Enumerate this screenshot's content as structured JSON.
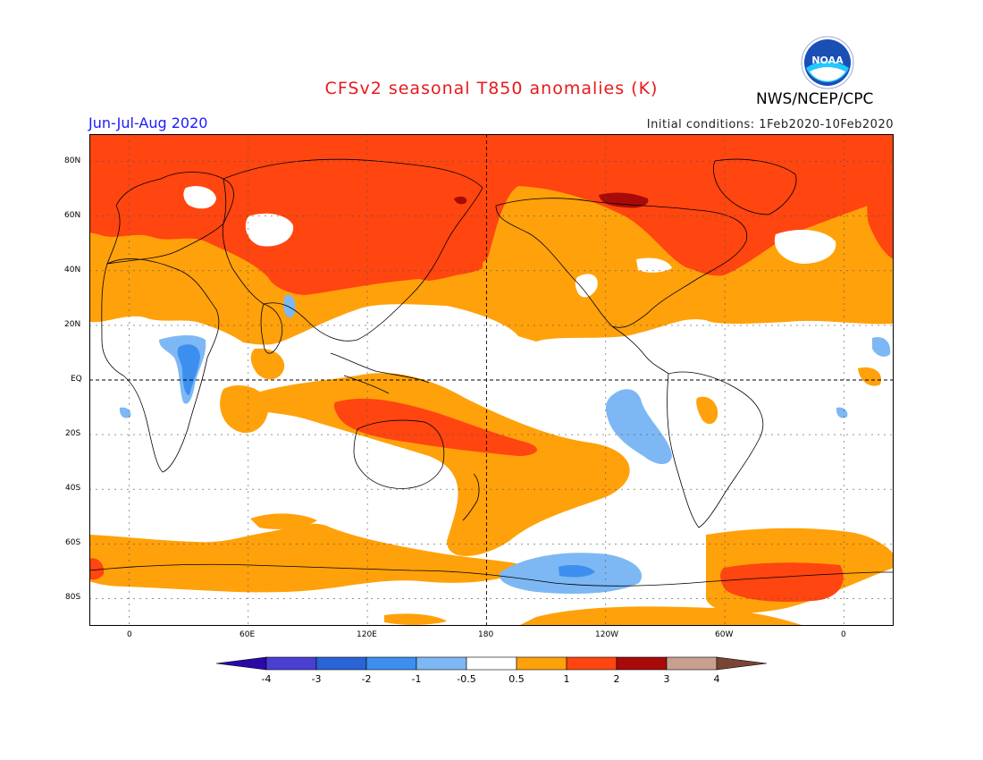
{
  "header": {
    "title": "CFSv2 seasonal T850 anomalies (K)",
    "agency": "NWS/NCEP/CPC",
    "season": "Jun-Jul-Aug 2020",
    "initial_conditions": "Initial conditions: 1Feb2020-10Feb2020",
    "logo_text": "NOAA"
  },
  "map": {
    "lat_labels": [
      "80N",
      "60N",
      "40N",
      "20N",
      "EQ",
      "20S",
      "40S",
      "60S",
      "80S"
    ],
    "lon_labels": [
      "0",
      "60E",
      "120E",
      "180",
      "120W",
      "60W",
      "0"
    ],
    "lon_range_deg": [
      -20,
      385
    ],
    "lat_range_deg": [
      -90,
      90
    ]
  },
  "legend": {
    "tick_labels": [
      "-4",
      "-3",
      "-2",
      "-1",
      "-0.5",
      "0.5",
      "1",
      "2",
      "3",
      "4"
    ],
    "colors": [
      "#2a0aa6",
      "#4a3fd0",
      "#2a64d6",
      "#3d8fef",
      "#7db8f4",
      "#ffffff",
      "#ffa10a",
      "#ff4510",
      "#a80a0a",
      "#c9a08f",
      "#7a4535"
    ]
  },
  "colors": {
    "title": "#e8191b",
    "season": "#1a1aff",
    "warm_light": "#ffa10a",
    "warm_mid": "#ff4510",
    "warm_dark": "#a80a0a",
    "cool_light": "#7db8f4",
    "cool_mid": "#3d8fef"
  }
}
